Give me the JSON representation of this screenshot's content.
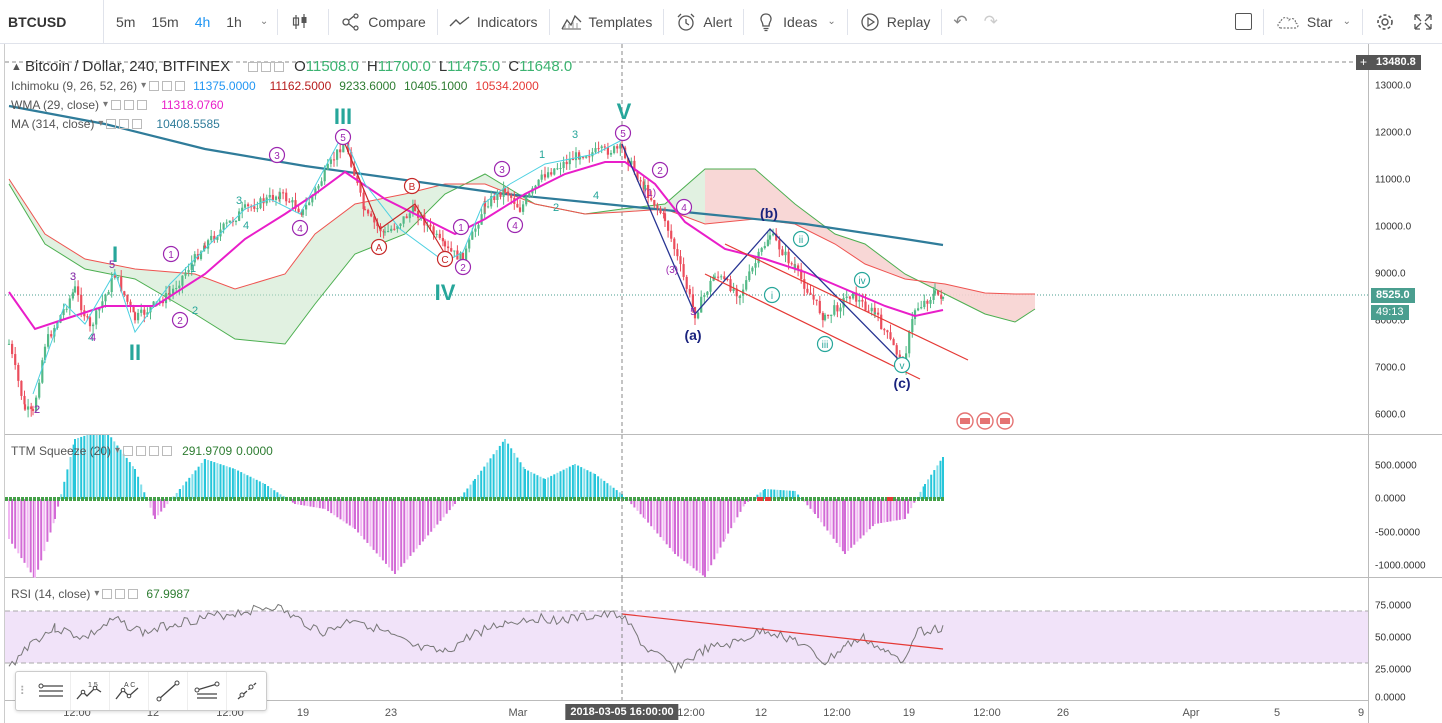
{
  "toolbar": {
    "symbol": "BTCUSD",
    "intervals": [
      "5m",
      "15m",
      "4h",
      "1h"
    ],
    "active_interval": "4h",
    "compare_label": "Compare",
    "indicators_label": "Indicators",
    "templates_label": "Templates",
    "alert_label": "Alert",
    "ideas_label": "Ideas",
    "replay_label": "Replay",
    "star_label": "Star"
  },
  "main_pane": {
    "title": "Bitcoin / Dollar, 240, BITFINEX",
    "ohlc": {
      "o_label": "O",
      "o": "11508.0",
      "h_label": "H",
      "h": "11700.0",
      "l_label": "L",
      "l": "11475.0",
      "c_label": "C",
      "c": "11648.0"
    },
    "ichimoku": {
      "name": "Ichimoku (9, 26, 52, 26)",
      "v1": "11375.0000",
      "v2": "11162.5000",
      "v3": "9233.6000",
      "v4": "10405.1000",
      "v5": "10534.2000"
    },
    "wma": {
      "name": "WMA (29, close)",
      "value": "11318.0760"
    },
    "ma": {
      "name": "MA (314, close)",
      "value": "10408.5585"
    },
    "price_ticks": [
      "13000.0",
      "12000.0",
      "11000.0",
      "10000.0",
      "9000.0",
      "8000.0",
      "7000.0",
      "6000.0"
    ],
    "top_price_tag": "13480.8",
    "last_price_tag": "8525.0",
    "countdown_tag": "49:13"
  },
  "wave_labels": {
    "major": [
      "I",
      "II",
      "III",
      "IV",
      "V"
    ],
    "corrective": [
      "(a)",
      "(b)",
      "(c)"
    ],
    "minor": [
      "i",
      "ii",
      "iii",
      "iv",
      "v"
    ]
  },
  "ttm_pane": {
    "name": "TTM Squeeze (20)",
    "v1": "291.9709",
    "v2": "0.0000",
    "ticks": [
      "500.0000",
      "0.0000",
      "-500.0000",
      "-1000.0000"
    ]
  },
  "rsi_pane": {
    "name": "RSI (14, close)",
    "value": "67.9987",
    "ticks": [
      "75.0000",
      "50.0000",
      "25.0000",
      "0.0000"
    ]
  },
  "time_axis": {
    "labels": [
      "12:00",
      "12",
      "12:00",
      "19",
      "23",
      "Mar",
      "12:00",
      "12",
      "12:00",
      "19",
      "12:00",
      "26",
      "Apr",
      "5",
      "9"
    ],
    "crosshair_label": "2018-03-05 16:00:00"
  },
  "colors": {
    "accent": "#2196f3",
    "wave_teal": "#26a69a",
    "wave_purple": "#9c27b0",
    "wave_navy": "#1a237e",
    "ma_line": "#2f7c9a",
    "wma_line": "#e91ec9",
    "cloud_green": "#c8e6c9",
    "cloud_red": "#ffcdd2",
    "rsi_band": "#eddcf7"
  }
}
